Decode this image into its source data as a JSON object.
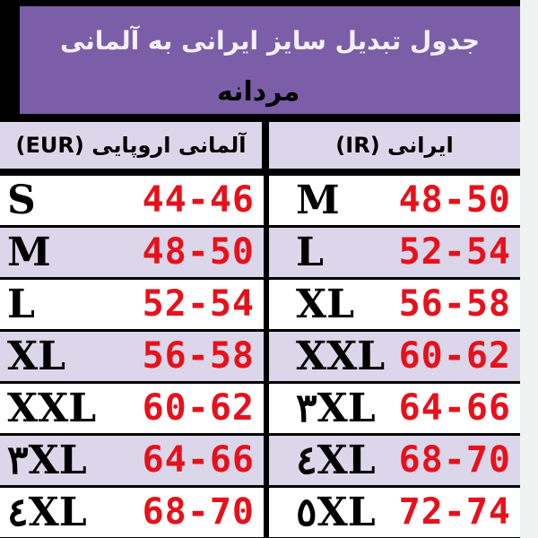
{
  "title": "جدول تبدیل سایز ایرانی به آلمانی",
  "subtitle": "مردانه",
  "headers": {
    "left": "آلمانی اروپایی (EUR)",
    "right": "ایرانی (IR)"
  },
  "colors": {
    "purple": "#7b5ea7",
    "lavender": "#dbd6ea",
    "red": "#e8101a"
  },
  "rows": [
    {
      "eur_size": "S",
      "eur_range": "44-46",
      "ir_size": "M",
      "ir_range": "48-50"
    },
    {
      "eur_size": "M",
      "eur_range": "48-50",
      "ir_size": "L",
      "ir_range": "52-54"
    },
    {
      "eur_size": "L",
      "eur_range": "52-54",
      "ir_size": "XL",
      "ir_range": "56-58"
    },
    {
      "eur_size": "XL",
      "eur_range": "56-58",
      "ir_size": "XXL",
      "ir_range": "60-62"
    },
    {
      "eur_size": "XXL",
      "eur_range": "60-62",
      "ir_size": "٣XL",
      "ir_range": "64-66"
    },
    {
      "eur_size": "٣XL",
      "eur_range": "64-66",
      "ir_size": "٤XL",
      "ir_range": "68-70"
    },
    {
      "eur_size": "٤XL",
      "eur_range": "68-70",
      "ir_size": "٥XL",
      "ir_range": "72-74"
    }
  ]
}
